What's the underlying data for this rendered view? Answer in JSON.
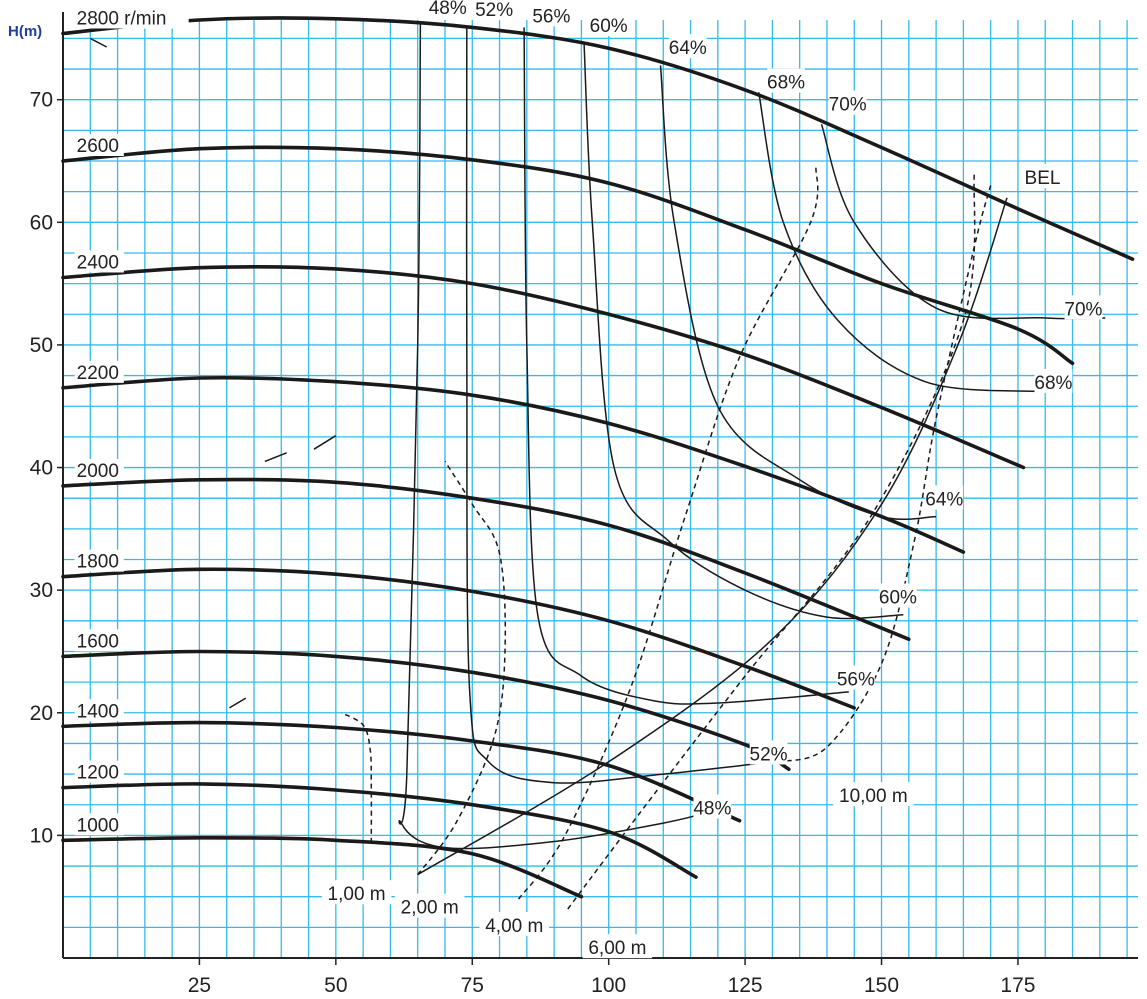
{
  "chart_data": {
    "type": "line",
    "title": "",
    "ylabel": "H(m)",
    "xlabel": "",
    "xlim": [
      0,
      197
    ],
    "ylim": [
      0,
      76.5
    ],
    "grid": true,
    "colors": {
      "grid": "#33bbee",
      "background": "#ffffff",
      "curve": "#1a1a1a",
      "ylabel": "#1f3f9c"
    },
    "xticks": [
      "25",
      "50",
      "75",
      "100",
      "125",
      "150",
      "175"
    ],
    "yticks": [
      "10",
      "20",
      "30",
      "40",
      "50",
      "60",
      "70"
    ],
    "speed_curves": [
      {
        "label": "2800 r/min",
        "points": [
          [
            0,
            75.4
          ],
          [
            25,
            76.5
          ],
          [
            50,
            76.6
          ],
          [
            75,
            75.9
          ],
          [
            100,
            74.2
          ],
          [
            125,
            70.8
          ],
          [
            150,
            66.1
          ],
          [
            175,
            61.1
          ],
          [
            196,
            57
          ]
        ]
      },
      {
        "label": "2600",
        "points": [
          [
            0,
            65
          ],
          [
            25,
            66
          ],
          [
            50,
            66
          ],
          [
            75,
            65.1
          ],
          [
            100,
            63.2
          ],
          [
            125,
            59.4
          ],
          [
            150,
            55
          ],
          [
            175,
            51.3
          ],
          [
            185,
            48.5
          ]
        ]
      },
      {
        "label": "2400",
        "points": [
          [
            0,
            55.5
          ],
          [
            25,
            56.3
          ],
          [
            50,
            56.2
          ],
          [
            75,
            55
          ],
          [
            100,
            52.5
          ],
          [
            125,
            49.2
          ],
          [
            150,
            44.9
          ],
          [
            176,
            40
          ]
        ]
      },
      {
        "label": "2200",
        "points": [
          [
            0,
            46.5
          ],
          [
            25,
            47.3
          ],
          [
            50,
            47
          ],
          [
            75,
            45.9
          ],
          [
            100,
            43.6
          ],
          [
            125,
            40.1
          ],
          [
            150,
            36
          ],
          [
            165,
            33.1
          ]
        ]
      },
      {
        "label": "2000",
        "points": [
          [
            0,
            38.5
          ],
          [
            25,
            39
          ],
          [
            50,
            38.8
          ],
          [
            75,
            37.5
          ],
          [
            100,
            35.3
          ],
          [
            125,
            31.4
          ],
          [
            155,
            26
          ]
        ]
      },
      {
        "label": "1800",
        "points": [
          [
            0,
            31.1
          ],
          [
            25,
            31.7
          ],
          [
            50,
            31.3
          ],
          [
            75,
            29.9
          ],
          [
            100,
            27.5
          ],
          [
            125,
            23.8
          ],
          [
            145,
            20.4
          ]
        ]
      },
      {
        "label": "1600",
        "points": [
          [
            0,
            24.6
          ],
          [
            25,
            25
          ],
          [
            50,
            24.6
          ],
          [
            75,
            23.3
          ],
          [
            100,
            21
          ],
          [
            125,
            17.4
          ],
          [
            133,
            15.4
          ]
        ]
      },
      {
        "label": "1400",
        "points": [
          [
            0,
            18.9
          ],
          [
            25,
            19.2
          ],
          [
            50,
            18.8
          ],
          [
            75,
            17.7
          ],
          [
            100,
            15.7
          ],
          [
            124,
            11.2
          ]
        ]
      },
      {
        "label": "1200",
        "points": [
          [
            0,
            13.9
          ],
          [
            25,
            14.2
          ],
          [
            50,
            13.7
          ],
          [
            75,
            12.5
          ],
          [
            100,
            10.3
          ],
          [
            116,
            6.6
          ]
        ]
      },
      {
        "label": "1000",
        "points": [
          [
            0,
            9.6
          ],
          [
            25,
            9.8
          ],
          [
            50,
            9.6
          ],
          [
            75,
            8.5
          ],
          [
            95,
            5
          ]
        ]
      }
    ],
    "efficiency_curves": [
      {
        "label": "48%",
        "points": [
          [
            65.5,
            76.2
          ],
          [
            65,
            50
          ],
          [
            63,
            15
          ],
          [
            62,
            11
          ],
          [
            70,
            9
          ],
          [
            90,
            9.5
          ],
          [
            110,
            11
          ],
          [
            121,
            12.2
          ]
        ]
      },
      {
        "label": "52%",
        "points": [
          [
            74,
            76
          ],
          [
            74,
            50
          ],
          [
            74.5,
            22
          ],
          [
            78,
            16
          ],
          [
            90,
            14.3
          ],
          [
            110,
            15
          ],
          [
            130,
            16
          ]
        ]
      },
      {
        "label": "56%",
        "points": [
          [
            84.5,
            75.9
          ],
          [
            85,
            50
          ],
          [
            87,
            28
          ],
          [
            95,
            23
          ],
          [
            108,
            21
          ],
          [
            120,
            20.8
          ],
          [
            144,
            21.7
          ]
        ]
      },
      {
        "label": "60%",
        "points": [
          [
            95.5,
            74.5
          ],
          [
            97,
            60
          ],
          [
            101,
            40
          ],
          [
            111,
            34
          ],
          [
            125,
            30
          ],
          [
            140,
            27.8
          ],
          [
            154,
            28
          ]
        ]
      },
      {
        "label": "64%",
        "points": [
          [
            109.5,
            72.8
          ],
          [
            112,
            60
          ],
          [
            120,
            45
          ],
          [
            135,
            39
          ],
          [
            150,
            36
          ],
          [
            160,
            36
          ]
        ]
      },
      {
        "label": "68%",
        "points": [
          [
            127.5,
            70.6
          ],
          [
            132,
            60
          ],
          [
            142,
            52
          ],
          [
            158,
            47
          ],
          [
            179,
            46.2
          ]
        ]
      },
      {
        "label": "70%",
        "points": [
          [
            139,
            68
          ],
          [
            145,
            60
          ],
          [
            160,
            53
          ],
          [
            180,
            52.2
          ],
          [
            191,
            52.2
          ]
        ]
      }
    ],
    "head_loss_curves": [
      {
        "label": "1,00 m",
        "points": [
          [
            56.5,
            9.4
          ],
          [
            56.5,
            14
          ],
          [
            56.3,
            17
          ],
          [
            55,
            19
          ],
          [
            51,
            20
          ]
        ]
      },
      {
        "label": "2,00 m",
        "points": [
          [
            65,
            6.8
          ],
          [
            72,
            11
          ],
          [
            79,
            18
          ],
          [
            81,
            25
          ],
          [
            80,
            33
          ],
          [
            75,
            37
          ],
          [
            70,
            40.5
          ]
        ]
      },
      {
        "label": "4,00 m",
        "points": [
          [
            83.5,
            4.8
          ],
          [
            92,
            10
          ],
          [
            104,
            22
          ],
          [
            114,
            36
          ],
          [
            124,
            49
          ],
          [
            137,
            60
          ],
          [
            138,
            64.5
          ]
        ]
      },
      {
        "label": "6,00 m",
        "points": [
          [
            92.5,
            4
          ],
          [
            106,
            12
          ],
          [
            125,
            23
          ],
          [
            148,
            36
          ],
          [
            165,
            52
          ],
          [
            167,
            64
          ]
        ]
      },
      {
        "label": "10,00 m",
        "points": [
          [
            131,
            16
          ],
          [
            140,
            17.2
          ],
          [
            150,
            24
          ],
          [
            156,
            34
          ],
          [
            160,
            44
          ],
          [
            167,
            58
          ],
          [
            170,
            63
          ]
        ]
      }
    ],
    "bel_curve": {
      "label": "BEL",
      "points": [
        [
          65,
          6.8
        ],
        [
          100,
          16
        ],
        [
          130,
          26
        ],
        [
          150,
          37
        ],
        [
          164,
          50
        ],
        [
          173,
          62
        ]
      ]
    },
    "extra_dashes": [
      [
        [
          37,
          40.5
        ],
        [
          41,
          41.2
        ]
      ],
      [
        [
          46,
          41.5
        ],
        [
          50,
          42.6
        ]
      ],
      [
        [
          30.5,
          20.4
        ],
        [
          33.5,
          21.2
        ]
      ],
      [
        [
          5,
          75
        ],
        [
          8,
          74.3
        ]
      ]
    ],
    "labels": [
      {
        "text": "48%",
        "x": 70.5,
        "y": 77.5
      },
      {
        "text": "52%",
        "x": 79,
        "y": 77.3
      },
      {
        "text": "56%",
        "x": 89.5,
        "y": 76.8
      },
      {
        "text": "60%",
        "x": 100,
        "y": 76
      },
      {
        "text": "64%",
        "x": 114.5,
        "y": 74.2
      },
      {
        "text": "68%",
        "x": 132.5,
        "y": 71.4
      },
      {
        "text": "70%",
        "x": 143.8,
        "y": 69.6
      },
      {
        "text": "BEL",
        "x": 179.5,
        "y": 63.6
      },
      {
        "text": "70%",
        "x": 187,
        "y": 52.9
      },
      {
        "text": "68%",
        "x": 181.5,
        "y": 46.9
      },
      {
        "text": "64%",
        "x": 161.5,
        "y": 37.4
      },
      {
        "text": "60%",
        "x": 153,
        "y": 29.4
      },
      {
        "text": "56%",
        "x": 145.3,
        "y": 22.7
      },
      {
        "text": "52%",
        "x": 129.3,
        "y": 16.6
      },
      {
        "text": "48%",
        "x": 119,
        "y": 12.2
      },
      {
        "text": "10,00 m",
        "x": 148.5,
        "y": 13.2
      },
      {
        "text": "1,00 m",
        "x": 53.8,
        "y": 5.2
      },
      {
        "text": "2,00 m",
        "x": 67.2,
        "y": 4.1
      },
      {
        "text": "4,00 m",
        "x": 82.7,
        "y": 2.6
      },
      {
        "text": "6,00 m",
        "x": 101.6,
        "y": 0.8
      }
    ]
  }
}
